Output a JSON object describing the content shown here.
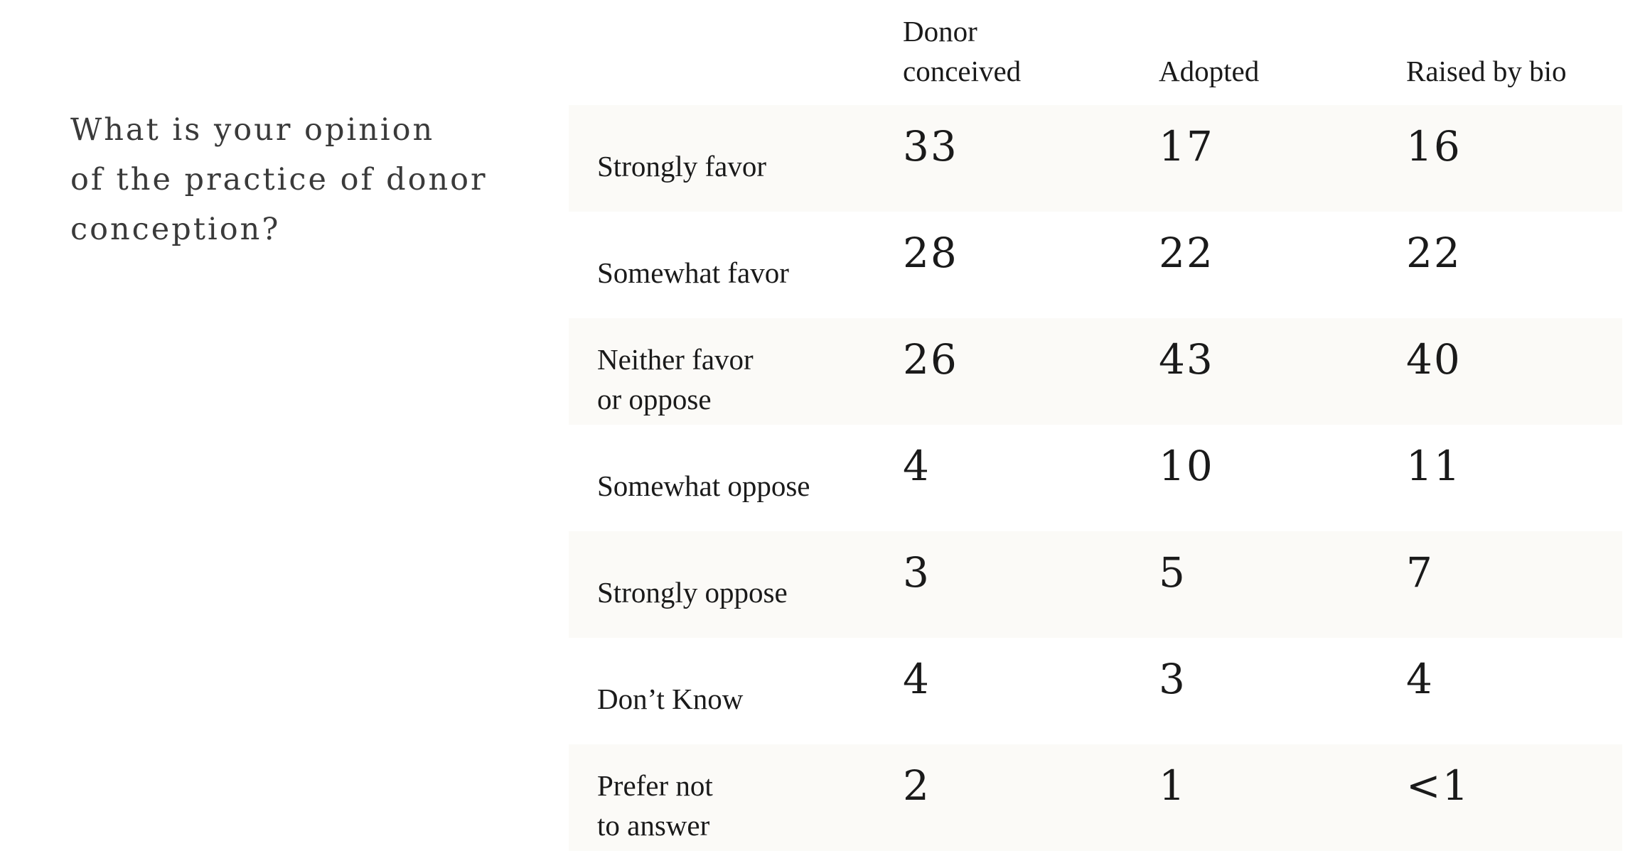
{
  "question": "What is your opinion\nof the practice of donor\nconception?",
  "columns": [
    "Donor\nconceived",
    "Adopted",
    "Raised by bio"
  ],
  "rows": [
    {
      "label": "Strongly favor",
      "values": [
        "33",
        "17",
        "16"
      ]
    },
    {
      "label": "Somewhat favor",
      "values": [
        "28",
        "22",
        "22"
      ]
    },
    {
      "label": "Neither favor\nor oppose",
      "values": [
        "26",
        "43",
        "40"
      ]
    },
    {
      "label": "Somewhat oppose",
      "values": [
        "4",
        "10",
        "11"
      ]
    },
    {
      "label": "Strongly oppose",
      "values": [
        "3",
        "5",
        "7"
      ]
    },
    {
      "label": "Don’t Know",
      "values": [
        "4",
        "3",
        "4"
      ]
    },
    {
      "label": "Prefer not\nto answer",
      "values": [
        "2",
        "1",
        "<1"
      ]
    }
  ],
  "colors": {
    "row_shade": "#fbfaf7",
    "question_text": "#3a3a3a",
    "text": "#1a1a1a"
  }
}
